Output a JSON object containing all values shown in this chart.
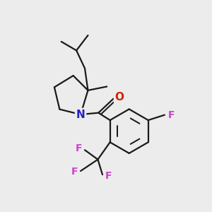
{
  "bg_color": "#ececec",
  "bond_color": "#1a1a1a",
  "N_color": "#2222cc",
  "O_color": "#cc2200",
  "F_color": "#cc44cc",
  "line_width": 1.6,
  "figsize": [
    3.0,
    3.0
  ],
  "dpi": 100,
  "xlim": [
    0,
    10
  ],
  "ylim": [
    0,
    10
  ]
}
